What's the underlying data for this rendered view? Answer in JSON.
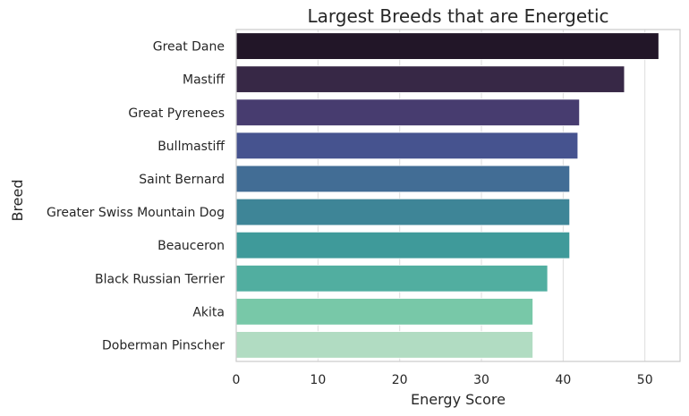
{
  "chart_data": {
    "type": "bar",
    "orientation": "horizontal",
    "title": "Largest Breeds that are Energetic",
    "xlabel": "Energy Score",
    "ylabel": "Breed",
    "xlim": [
      0,
      54.3
    ],
    "xticks": [
      "0",
      "10",
      "20",
      "30",
      "40",
      "50"
    ],
    "grid": true,
    "categories": [
      "Great Dane",
      "Mastiff",
      "Great Pyrenees",
      "Bullmastiff",
      "Saint Bernard",
      "Greater Swiss Mountain Dog",
      "Beauceron",
      "Black Russian Terrier",
      "Akita",
      "Doberman Pinscher"
    ],
    "values": [
      51.7,
      47.5,
      42.0,
      41.8,
      40.8,
      40.8,
      40.8,
      38.1,
      36.3,
      36.3
    ],
    "colors": [
      "#221628",
      "#372846",
      "#473c6f",
      "#46538f",
      "#426d95",
      "#3e8597",
      "#3f9a9a",
      "#51aea0",
      "#78c8a8",
      "#b1dcc2"
    ]
  }
}
